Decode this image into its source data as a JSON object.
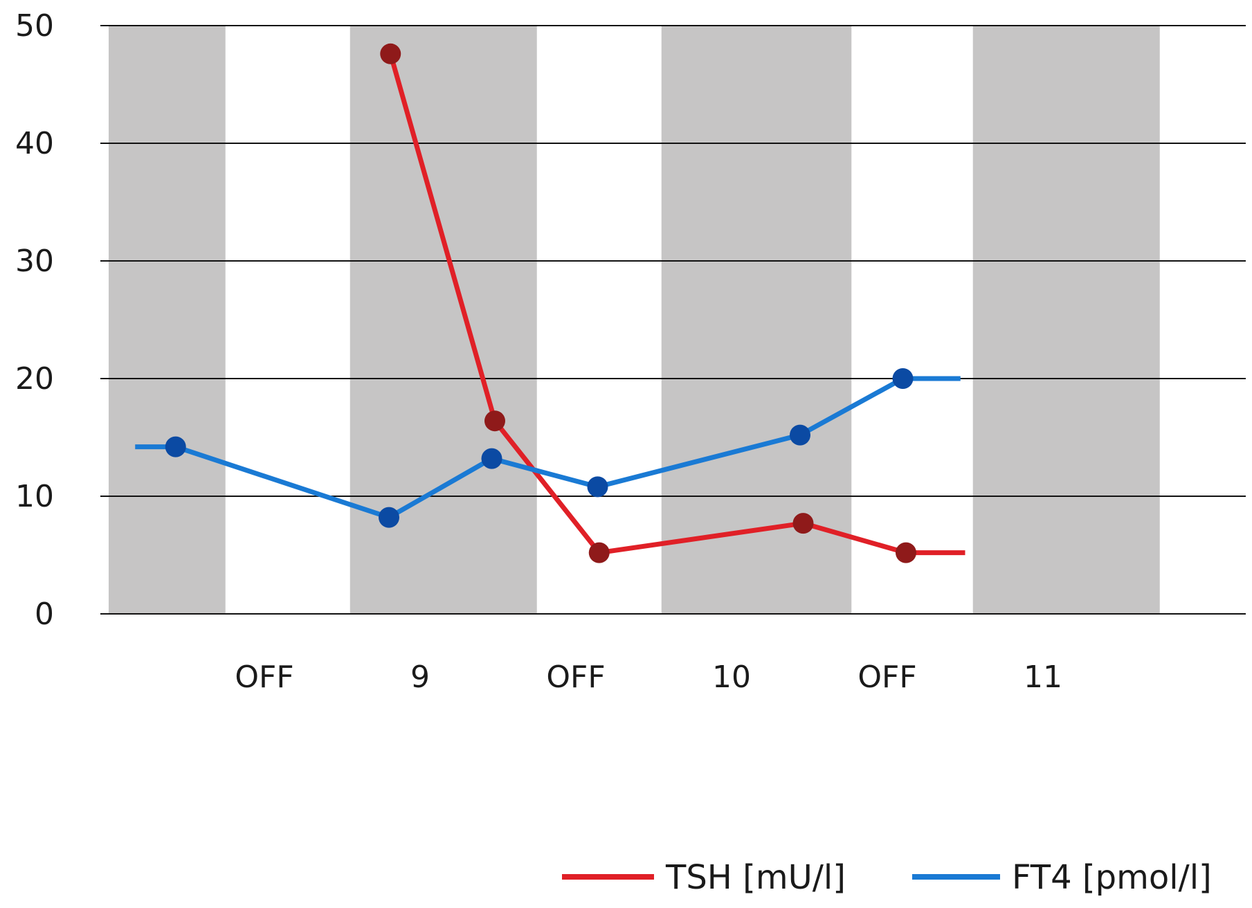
{
  "chart_data": {
    "type": "line",
    "title": "",
    "xlabel": "",
    "ylabel": "",
    "ylim": [
      0,
      50
    ],
    "yticks": [
      "0",
      "10",
      "20",
      "30",
      "40",
      "50"
    ],
    "grid": "horizontal",
    "legend_position": "bottom-right",
    "categories": [
      "OFF",
      "9",
      "OFF",
      "10",
      "OFF",
      "11"
    ],
    "series": [
      {
        "name": "TSH [mU/l]",
        "color": "#e02027",
        "marker_color": "#8f1a1a",
        "x": [
          1.81,
          2.48,
          3.15,
          4.46,
          5.12
        ],
        "y": [
          47.6,
          16.4,
          5.2,
          7.7,
          5.2
        ],
        "tail_to": 5.5
      },
      {
        "name": "FT4 [pmol/l]",
        "color": "#1a7ad4",
        "marker_color": "#0b4aa3",
        "x": [
          0.43,
          1.8,
          2.46,
          3.14,
          4.44,
          5.1
        ],
        "y": [
          14.2,
          8.2,
          13.2,
          10.8,
          15.2,
          20.0
        ],
        "tail_from": 0.17,
        "tail_to": 5.47
      }
    ],
    "bands": {
      "shaded_color": "#c6c5c5",
      "edges": [
        0,
        0.75,
        1.55,
        2.75,
        3.55,
        4.77,
        5.55,
        6.75
      ],
      "shaded": [
        0,
        2,
        4,
        6
      ]
    }
  }
}
